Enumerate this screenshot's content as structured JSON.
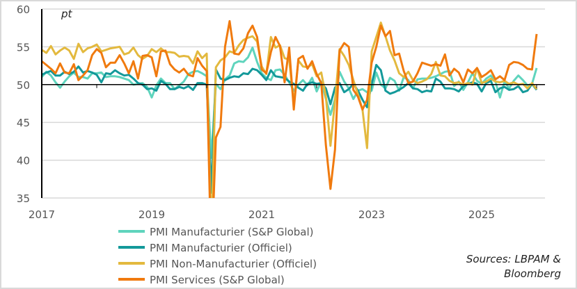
{
  "chart_data": {
    "type": "line",
    "unit_label": "pt",
    "ylim": [
      35,
      60
    ],
    "yticks": [
      35,
      40,
      45,
      50,
      55,
      60
    ],
    "xticks": [
      "2017",
      "2019",
      "2021",
      "2023",
      "2025"
    ],
    "reference_line": 50,
    "grid": true,
    "legend_position": "bottom-left",
    "x_start": "2017-01",
    "x_frequency": "monthly",
    "series": [
      {
        "name": "PMI Manufacturier (S&P Global)",
        "color": "#5fd4bd",
        "values": [
          51.0,
          51.7,
          51.2,
          50.3,
          49.6,
          50.4,
          51.1,
          51.6,
          51.0,
          51.0,
          50.8,
          51.5,
          51.5,
          51.6,
          51.0,
          51.1,
          51.1,
          51.0,
          50.8,
          50.6,
          50.0,
          50.1,
          50.2,
          49.7,
          48.3,
          49.9,
          50.8,
          50.2,
          50.2,
          49.4,
          49.9,
          50.4,
          51.4,
          51.7,
          51.8,
          51.5,
          51.1,
          40.3,
          50.1,
          49.4,
          50.7,
          51.2,
          52.8,
          53.1,
          53.0,
          53.6,
          54.9,
          53.0,
          51.5,
          50.9,
          50.6,
          51.9,
          52.0,
          51.3,
          50.3,
          49.2,
          50.0,
          50.6,
          49.9,
          50.9,
          49.1,
          50.4,
          48.1,
          46.0,
          48.1,
          51.7,
          50.4,
          49.5,
          48.1,
          49.2,
          49.4,
          49.0,
          49.2,
          51.6,
          50.0,
          49.5,
          50.9,
          50.5,
          49.2,
          51.0,
          50.6,
          49.5,
          50.7,
          50.8,
          50.8,
          50.9,
          51.1,
          51.4,
          51.7,
          51.8,
          49.8,
          50.4,
          49.3,
          50.3,
          51.5,
          50.5,
          50.1,
          50.8,
          51.2,
          50.4,
          48.3,
          50.4,
          49.5,
          50.5,
          51.2,
          50.6,
          49.9,
          50.1,
          52.2
        ]
      },
      {
        "name": "PMI Manufacturier (Officiel)",
        "color": "#13999a",
        "values": [
          51.3,
          51.6,
          51.8,
          51.2,
          51.2,
          51.7,
          51.4,
          51.7,
          52.4,
          51.6,
          51.8,
          51.6,
          51.3,
          50.3,
          51.5,
          51.4,
          51.9,
          51.5,
          51.2,
          51.3,
          50.8,
          50.2,
          50.0,
          49.4,
          49.5,
          49.2,
          50.5,
          50.1,
          49.4,
          49.4,
          49.7,
          49.5,
          49.8,
          49.3,
          50.2,
          50.2,
          50.0,
          35.7,
          52.0,
          50.8,
          50.6,
          50.9,
          51.1,
          51.0,
          51.5,
          51.4,
          52.1,
          51.9,
          51.3,
          50.6,
          51.9,
          51.1,
          51.0,
          50.9,
          50.4,
          50.1,
          49.6,
          49.2,
          50.1,
          50.3,
          50.1,
          50.2,
          49.5,
          47.4,
          49.6,
          50.2,
          49.0,
          49.4,
          50.1,
          49.2,
          48.0,
          47.0,
          50.1,
          52.6,
          51.9,
          49.2,
          48.8,
          49.0,
          49.3,
          49.7,
          50.2,
          49.5,
          49.4,
          49.0,
          49.2,
          49.1,
          50.8,
          50.4,
          49.5,
          49.5,
          49.4,
          49.1,
          49.8,
          50.1,
          50.3,
          50.1,
          49.1,
          50.2,
          50.5,
          49.0,
          49.5,
          49.7,
          49.3,
          49.4,
          49.8,
          49.0,
          49.2,
          50.1,
          49.3
        ]
      },
      {
        "name": "PMI Non-Manufacturier (Officiel)",
        "color": "#e3b93e",
        "values": [
          54.6,
          54.2,
          55.1,
          54.0,
          54.5,
          54.9,
          54.5,
          53.4,
          55.4,
          54.3,
          54.8,
          55.0,
          55.3,
          54.4,
          54.6,
          54.8,
          54.9,
          55.0,
          54.0,
          54.2,
          54.9,
          53.9,
          53.4,
          53.8,
          54.7,
          54.3,
          54.8,
          54.3,
          54.3,
          54.2,
          53.7,
          53.8,
          53.7,
          52.8,
          54.4,
          53.5,
          54.1,
          29.6,
          52.3,
          53.2,
          53.6,
          54.4,
          54.2,
          55.2,
          55.9,
          56.2,
          56.4,
          55.7,
          52.4,
          51.4,
          56.3,
          54.9,
          55.2,
          53.5,
          53.3,
          47.5,
          53.2,
          52.4,
          52.3,
          52.7,
          51.1,
          51.6,
          48.4,
          41.9,
          47.8,
          54.7,
          53.8,
          52.6,
          50.6,
          48.7,
          46.7,
          41.6,
          54.4,
          56.3,
          58.2,
          56.4,
          54.5,
          53.2,
          51.5,
          51.0,
          51.7,
          50.6,
          50.2,
          50.4,
          50.7,
          51.4,
          53.0,
          51.2,
          51.1,
          50.5,
          50.2,
          50.3,
          50.0,
          50.2,
          50.0,
          52.2,
          50.2,
          50.4,
          50.8,
          50.4,
          50.3,
          50.5,
          50.1,
          50.3,
          50.0,
          50.1,
          49.5,
          50.2,
          49.4
        ]
      },
      {
        "name": "PMI Services (S&P Global)",
        "color": "#f07a0e",
        "values": [
          53.1,
          52.6,
          52.1,
          51.5,
          52.8,
          51.6,
          51.5,
          52.7,
          50.6,
          51.2,
          51.9,
          53.9,
          54.7,
          54.2,
          52.3,
          52.9,
          52.9,
          53.9,
          52.8,
          51.5,
          53.1,
          50.8,
          53.8,
          53.9,
          53.6,
          51.1,
          54.4,
          54.5,
          52.7,
          52.0,
          51.6,
          52.1,
          51.3,
          51.1,
          53.5,
          52.5,
          51.8,
          26.5,
          43.0,
          44.4,
          55.0,
          58.4,
          54.1,
          54.0,
          54.8,
          56.8,
          57.8,
          56.3,
          52.0,
          51.5,
          54.3,
          56.3,
          55.1,
          50.3,
          54.9,
          46.7,
          53.4,
          53.8,
          52.1,
          53.1,
          51.4,
          50.2,
          42.0,
          36.2,
          41.4,
          54.5,
          55.5,
          55.0,
          49.3,
          48.4,
          46.7,
          48.0,
          52.9,
          55.0,
          57.8,
          56.4,
          57.1,
          53.9,
          54.1,
          51.8,
          50.2,
          50.4,
          51.5,
          52.9,
          52.7,
          52.5,
          52.7,
          52.5,
          54.0,
          51.2,
          52.1,
          51.6,
          50.3,
          52.0,
          51.5,
          52.2,
          51.0,
          51.4,
          51.9,
          50.7,
          51.1,
          50.6,
          52.6,
          53.0,
          52.9,
          52.6,
          52.1,
          52.0,
          56.7
        ]
      }
    ]
  },
  "sources": [
    "Sources: LBPAM &",
    "Bloomberg"
  ]
}
